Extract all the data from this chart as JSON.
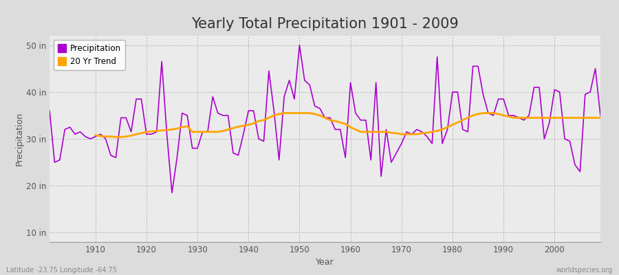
{
  "title": "Yearly Total Precipitation 1901 - 2009",
  "xlabel": "Year",
  "ylabel": "Precipitation",
  "years": [
    1901,
    1902,
    1903,
    1904,
    1905,
    1906,
    1907,
    1908,
    1909,
    1910,
    1911,
    1912,
    1913,
    1914,
    1915,
    1916,
    1917,
    1918,
    1919,
    1920,
    1921,
    1922,
    1923,
    1924,
    1925,
    1926,
    1927,
    1928,
    1929,
    1930,
    1931,
    1932,
    1933,
    1934,
    1935,
    1936,
    1937,
    1938,
    1939,
    1940,
    1941,
    1942,
    1943,
    1944,
    1945,
    1946,
    1947,
    1948,
    1949,
    1950,
    1951,
    1952,
    1953,
    1954,
    1955,
    1956,
    1957,
    1958,
    1959,
    1960,
    1961,
    1962,
    1963,
    1964,
    1965,
    1966,
    1967,
    1968,
    1969,
    1970,
    1971,
    1972,
    1973,
    1974,
    1975,
    1976,
    1977,
    1978,
    1979,
    1980,
    1981,
    1982,
    1983,
    1984,
    1985,
    1986,
    1987,
    1988,
    1989,
    1990,
    1991,
    1992,
    1993,
    1994,
    1995,
    1996,
    1997,
    1998,
    1999,
    2000,
    2001,
    2002,
    2003,
    2004,
    2005,
    2006,
    2007,
    2008,
    2009
  ],
  "precip_in": [
    36.0,
    25.0,
    25.5,
    32.0,
    32.5,
    31.0,
    31.5,
    30.5,
    30.0,
    30.5,
    31.0,
    30.0,
    26.5,
    26.0,
    34.5,
    34.5,
    31.5,
    38.5,
    38.5,
    31.0,
    31.0,
    31.5,
    46.5,
    31.0,
    18.5,
    26.0,
    35.5,
    35.0,
    28.0,
    28.0,
    31.5,
    31.5,
    39.0,
    35.5,
    35.0,
    35.0,
    27.0,
    26.5,
    31.0,
    36.0,
    36.0,
    30.0,
    29.5,
    44.5,
    36.0,
    25.5,
    39.0,
    42.5,
    38.5,
    50.0,
    42.5,
    41.5,
    37.0,
    36.5,
    34.5,
    34.5,
    32.0,
    32.0,
    26.0,
    42.0,
    35.5,
    34.0,
    34.0,
    25.5,
    42.0,
    22.0,
    32.0,
    25.0,
    27.0,
    29.0,
    31.5,
    31.0,
    32.0,
    31.5,
    30.5,
    29.0,
    47.5,
    29.0,
    32.0,
    40.0,
    40.0,
    32.0,
    31.5,
    45.5,
    45.5,
    39.5,
    35.5,
    35.0,
    38.5,
    38.5,
    35.0,
    35.0,
    34.5,
    34.0,
    35.0,
    41.0,
    41.0,
    30.0,
    33.5,
    40.5,
    40.0,
    30.0,
    29.5,
    24.5,
    23.0,
    39.5,
    40.0,
    45.0,
    35.0
  ],
  "trend_years": [
    1910,
    1911,
    1912,
    1913,
    1914,
    1915,
    1916,
    1917,
    1918,
    1919,
    1920,
    1921,
    1922,
    1923,
    1924,
    1925,
    1926,
    1927,
    1928,
    1929,
    1930,
    1931,
    1932,
    1933,
    1934,
    1935,
    1936,
    1937,
    1938,
    1939,
    1940,
    1941,
    1942,
    1943,
    1944,
    1945,
    1946,
    1947,
    1948,
    1949,
    1950,
    1951,
    1952,
    1953,
    1954,
    1955,
    1956,
    1957,
    1958,
    1959,
    1960,
    1961,
    1962,
    1963,
    1964,
    1965,
    1966,
    1967,
    1968,
    1969,
    1970,
    1971,
    1972,
    1973,
    1974,
    1975,
    1976,
    1977,
    1978,
    1979,
    1980,
    1981,
    1982,
    1983,
    1984,
    1985,
    1986,
    1987,
    1988,
    1989,
    1990,
    1991,
    1992,
    1993,
    1994,
    1995,
    1996,
    1997,
    1998,
    1999,
    2000,
    2001,
    2002,
    2003,
    2004,
    2005,
    2006,
    2007,
    2008,
    2009
  ],
  "trend_in": [
    30.8,
    30.6,
    30.5,
    30.5,
    30.4,
    30.4,
    30.5,
    30.7,
    31.0,
    31.2,
    31.5,
    31.6,
    31.7,
    31.8,
    31.9,
    32.0,
    32.2,
    32.5,
    32.7,
    31.5,
    31.5,
    31.5,
    31.5,
    31.5,
    31.5,
    31.7,
    32.0,
    32.3,
    32.6,
    32.8,
    33.0,
    33.3,
    33.8,
    34.0,
    34.5,
    35.0,
    35.3,
    35.5,
    35.5,
    35.5,
    35.5,
    35.5,
    35.5,
    35.3,
    35.0,
    34.5,
    34.0,
    33.8,
    33.5,
    33.2,
    32.5,
    32.0,
    31.5,
    31.5,
    31.5,
    31.5,
    31.5,
    31.5,
    31.3,
    31.2,
    31.0,
    31.0,
    31.0,
    31.0,
    31.2,
    31.3,
    31.5,
    31.7,
    32.0,
    32.5,
    33.0,
    33.5,
    34.0,
    34.5,
    35.0,
    35.3,
    35.5,
    35.5,
    35.5,
    35.3,
    35.0,
    34.8,
    34.5,
    34.5,
    34.5,
    34.5,
    34.5,
    34.5,
    34.5,
    34.5,
    34.5,
    34.5,
    34.5,
    34.5,
    34.5,
    34.5,
    34.5,
    34.5,
    34.5,
    34.5
  ],
  "precip_color": "#AA00CC",
  "trend_color": "#FFA500",
  "fig_bg_color": "#DCDCDC",
  "plot_bg_color": "#EBEBEB",
  "ytick_labels": [
    "10 in",
    "20 in",
    "30 in",
    "40 in",
    "50 in"
  ],
  "ytick_values": [
    10,
    20,
    30,
    40,
    50
  ],
  "ylim": [
    8,
    52
  ],
  "xlim": [
    1901,
    2009
  ],
  "xtick_values": [
    1910,
    1920,
    1930,
    1940,
    1950,
    1960,
    1970,
    1980,
    1990,
    2000
  ],
  "footer_left": "Latitude -23.75 Longitude -64.75",
  "footer_right": "worldspecies.org",
  "title_fontsize": 15,
  "label_fontsize": 9,
  "tick_fontsize": 8.5,
  "legend_entries": [
    "Precipitation",
    "20 Yr Trend"
  ]
}
